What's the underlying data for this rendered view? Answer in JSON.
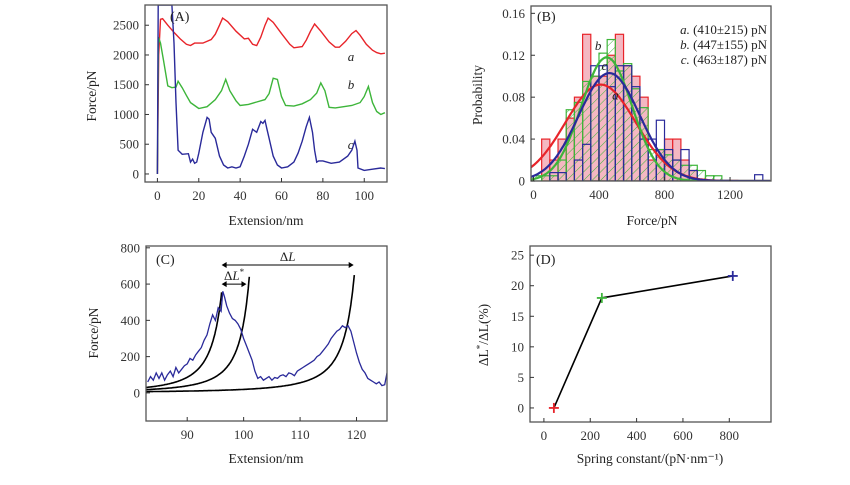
{
  "chart_data": [
    {
      "id": "A",
      "type": "line",
      "panel_label": "(A)",
      "xlabel": "Extension/nm",
      "ylabel": "Force/pN",
      "xlim": [
        -6,
        111
      ],
      "ylim": [
        -135,
        2840
      ],
      "xticks": [
        0,
        20,
        40,
        60,
        80,
        100
      ],
      "yticks": [
        0,
        500,
        1000,
        1500,
        2000,
        2500
      ],
      "series": [
        {
          "name": "a",
          "color": "#e8242a",
          "label_pos": [
            92,
            1900
          ],
          "x": [
            0,
            0.6,
            1.5,
            2.5,
            5,
            8,
            11,
            14,
            16,
            18,
            22,
            26,
            28,
            30,
            31.5,
            34,
            38,
            42,
            44,
            46,
            48,
            50,
            52,
            53.5,
            56,
            60,
            64,
            66,
            70,
            72,
            74,
            76,
            79,
            83,
            86,
            88,
            91,
            94,
            96,
            98,
            101,
            104,
            106,
            108,
            110
          ],
          "y": [
            0,
            2000,
            2600,
            2610,
            2500,
            2380,
            2270,
            2180,
            2160,
            2200,
            2200,
            2260,
            2350,
            2500,
            2620,
            2560,
            2400,
            2270,
            2280,
            2180,
            2160,
            2300,
            2500,
            2620,
            2550,
            2360,
            2180,
            2120,
            2140,
            2250,
            2400,
            2520,
            2400,
            2220,
            2130,
            2130,
            2230,
            2360,
            2410,
            2330,
            2180,
            2080,
            2040,
            2020,
            2030
          ]
        },
        {
          "name": "b",
          "color": "#3db53a",
          "label_pos": [
            92,
            1430
          ],
          "x": [
            0,
            0.5,
            1.5,
            3,
            5,
            7,
            9,
            10,
            12,
            14,
            16,
            18,
            20,
            24,
            28,
            31,
            33,
            35,
            38,
            40,
            44,
            48,
            52,
            54,
            56,
            58,
            60,
            62,
            66,
            70,
            74,
            77,
            79,
            81,
            83,
            86,
            90,
            94,
            98,
            100,
            102,
            104,
            106,
            108,
            110
          ],
          "y": [
            0,
            2300,
            2200,
            1900,
            1480,
            1450,
            1460,
            1560,
            1450,
            1320,
            1200,
            1150,
            1100,
            1130,
            1250,
            1400,
            1590,
            1400,
            1230,
            1150,
            1170,
            1210,
            1250,
            1350,
            1610,
            1590,
            1300,
            1150,
            1140,
            1180,
            1250,
            1360,
            1530,
            1400,
            1120,
            1110,
            1130,
            1150,
            1200,
            1300,
            1470,
            1200,
            1050,
            1000,
            1030
          ]
        },
        {
          "name": "c",
          "color": "#2a2a9a",
          "label_pos": [
            92,
            420
          ],
          "x": [
            0,
            0.4,
            0.8,
            1.2,
            2,
            4,
            6,
            7,
            8,
            9,
            10,
            12,
            15,
            16,
            17,
            18,
            19,
            20,
            22,
            24,
            25,
            26,
            28,
            30,
            32,
            34,
            36,
            38,
            40,
            42,
            44,
            46,
            48,
            50,
            51,
            52,
            53,
            54,
            56,
            58,
            60,
            63,
            66,
            68,
            70,
            72,
            73.5,
            75,
            76,
            77,
            78,
            80,
            84,
            88,
            92,
            94,
            95.5,
            96.5,
            97,
            100,
            104,
            108,
            110
          ],
          "y": [
            0,
            2840,
            2840,
            2840,
            2840,
            2840,
            2840,
            2840,
            2200,
            1200,
            400,
            330,
            340,
            200,
            250,
            180,
            200,
            350,
            700,
            950,
            920,
            700,
            600,
            300,
            150,
            100,
            120,
            100,
            120,
            300,
            500,
            750,
            700,
            880,
            850,
            900,
            750,
            600,
            300,
            150,
            100,
            120,
            200,
            350,
            550,
            800,
            950,
            700,
            400,
            200,
            220,
            220,
            180,
            200,
            300,
            400,
            550,
            400,
            100,
            60,
            80,
            100,
            90
          ]
        }
      ]
    },
    {
      "id": "B",
      "type": "bar",
      "panel_label": "(B)",
      "xlabel": "Force/pN",
      "ylabel": "Probability",
      "xlim": [
        -15,
        1450
      ],
      "ylim": [
        0,
        0.167
      ],
      "xticks": [
        0,
        400,
        800,
        1200
      ],
      "yticks": [
        0,
        0.04,
        0.08,
        0.12,
        0.16
      ],
      "legend": [
        {
          "prefix": "a.",
          "text": " (410±215) pN"
        },
        {
          "prefix": "b.",
          "text": " (447±155) pN"
        },
        {
          "prefix": "c.",
          "text": " (463±187) pN"
        }
      ],
      "curve_labels": [
        {
          "name": "b",
          "x": 375,
          "y": 0.125
        },
        {
          "name": "c",
          "x": 415,
          "y": 0.106
        },
        {
          "name": "a",
          "x": 480,
          "y": 0.078
        }
      ],
      "bin_width": 50,
      "series": [
        {
          "name": "a",
          "color": "#e8242a",
          "fill": "#f4b8c2",
          "style": "filled",
          "bin_starts": [
            50,
            100,
            150,
            200,
            250,
            300,
            350,
            400,
            450,
            500,
            550,
            600,
            650,
            700,
            750,
            800,
            850,
            900,
            950,
            1000
          ],
          "values": [
            0.04,
            0.02,
            0.04,
            0.06,
            0.08,
            0.14,
            0.1,
            0.1,
            0.12,
            0.14,
            0.11,
            0.1,
            0.08,
            0.02,
            0.03,
            0.04,
            0.04,
            0.02,
            0.01,
            0.0
          ]
        },
        {
          "name": "b",
          "color": "#3db53a",
          "fill": "none",
          "style": "hatched",
          "bin_starts": [
            0,
            50,
            100,
            150,
            200,
            250,
            300,
            350,
            400,
            450,
            500,
            550,
            600,
            650,
            700,
            750,
            800,
            850,
            900,
            950,
            1000,
            1050,
            1100
          ],
          "values": [
            0.005,
            0.005,
            0.005,
            0.02,
            0.068,
            0.075,
            0.095,
            0.1,
            0.122,
            0.135,
            0.105,
            0.112,
            0.088,
            0.07,
            0.03,
            0.03,
            0.025,
            0.02,
            0.015,
            0.015,
            0.01,
            0.005,
            0.005
          ]
        },
        {
          "name": "c",
          "color": "#2a2a9a",
          "fill": "none",
          "style": "outline",
          "bin_starts": [
            100,
            150,
            250,
            300,
            350,
            400,
            450,
            500,
            550,
            600,
            650,
            700,
            750,
            800,
            850,
            900,
            950,
            1350
          ],
          "values": [
            0.008,
            0.008,
            0.02,
            0.035,
            0.11,
            0.11,
            0.09,
            0.11,
            0.11,
            0.09,
            0.04,
            0.04,
            0.058,
            0.03,
            0.02,
            0.03,
            0.01,
            0.006
          ]
        }
      ],
      "fits": [
        {
          "name": "a",
          "color": "#e8242a",
          "mean": 410,
          "sigma": 215,
          "peak": 0.092
        },
        {
          "name": "b",
          "color": "#3db53a",
          "mean": 447,
          "sigma": 155,
          "peak": 0.118
        },
        {
          "name": "c",
          "color": "#2a2a9a",
          "mean": 463,
          "sigma": 187,
          "peak": 0.103
        }
      ]
    },
    {
      "id": "C",
      "type": "line",
      "panel_label": "(C)",
      "xlabel": "Extension/nm",
      "ylabel": "Force/pN",
      "xlim": [
        82.7,
        125.4
      ],
      "ylim": [
        -155,
        810
      ],
      "xticks": [
        90,
        100,
        110,
        120
      ],
      "yticks": [
        0,
        200,
        400,
        600,
        800
      ],
      "annotations": [
        {
          "label": "ΔL",
          "x_start": 96.1,
          "x_end": 119.5,
          "y": 705
        },
        {
          "label": "ΔL*",
          "x_start": 96.1,
          "x_end": 100.5,
          "y": 600
        }
      ],
      "wlc_curves": [
        {
          "name": "wlc-1",
          "contour_length": 100,
          "F0": 30,
          "x_from": 82.7,
          "x_to": 96.1
        },
        {
          "name": "wlc-2",
          "contour_length": 104.5,
          "F0": 18,
          "x_from": 82.7,
          "x_to": 101
        },
        {
          "name": "wlc-3",
          "contour_length": 123.5,
          "F0": 7,
          "x_from": 82.7,
          "x_to": 119.6
        }
      ],
      "series": [
        {
          "name": "trace",
          "color": "#2a2a9a",
          "x": [
            83,
            83.5,
            84,
            84.5,
            85,
            85.5,
            86,
            86.5,
            87,
            87.5,
            88,
            88.5,
            89,
            89.5,
            90,
            90.5,
            91,
            91.5,
            92,
            92.5,
            93,
            93.5,
            94,
            94.5,
            95,
            95.5,
            96,
            96.3,
            96.6,
            97,
            97.5,
            98,
            98.5,
            99,
            99.5,
            100,
            100.5,
            101,
            101.5,
            102,
            102.5,
            103,
            103.5,
            104,
            104.5,
            105,
            105.5,
            106,
            106.5,
            107,
            107.5,
            108,
            108.5,
            109,
            109.5,
            110,
            110.5,
            111,
            111.5,
            112,
            112.5,
            113,
            113.5,
            114,
            114.5,
            115,
            115.5,
            116,
            116.5,
            117,
            117.5,
            118,
            118.5,
            119,
            119.5,
            120,
            120.5,
            121,
            121.5,
            122,
            122.5,
            123,
            123.5,
            124,
            124.5,
            125,
            125.4
          ],
          "y": [
            60,
            90,
            70,
            110,
            80,
            110,
            70,
            100,
            120,
            90,
            140,
            110,
            130,
            150,
            160,
            190,
            180,
            210,
            230,
            250,
            290,
            320,
            380,
            430,
            400,
            470,
            450,
            560,
            530,
            480,
            440,
            410,
            400,
            380,
            350,
            300,
            260,
            220,
            180,
            120,
            80,
            90,
            70,
            80,
            90,
            70,
            85,
            80,
            95,
            100,
            90,
            110,
            105,
            95,
            120,
            130,
            140,
            150,
            160,
            170,
            180,
            200,
            210,
            230,
            250,
            270,
            300,
            320,
            340,
            350,
            370,
            360,
            370,
            340,
            280,
            220,
            170,
            130,
            110,
            80,
            70,
            60,
            50,
            60,
            40,
            45,
            110
          ]
        }
      ]
    },
    {
      "id": "D",
      "type": "line",
      "panel_label": "(D)",
      "xlabel": "Spring constant/(pN·nm⁻¹)",
      "ylabel": "ΔL*/ΔL(%)",
      "xlim": [
        -60,
        980
      ],
      "ylim": [
        -2.3,
        26.5
      ],
      "xticks": [
        0,
        200,
        400,
        600,
        800
      ],
      "yticks": [
        0,
        5,
        10,
        15,
        20,
        25
      ],
      "x": [
        43,
        250,
        815
      ],
      "y": [
        0,
        18,
        21.6
      ],
      "marker_colors": [
        "#e8242a",
        "#3db53a",
        "#2a2a9a"
      ],
      "line_color": "#000000"
    }
  ]
}
